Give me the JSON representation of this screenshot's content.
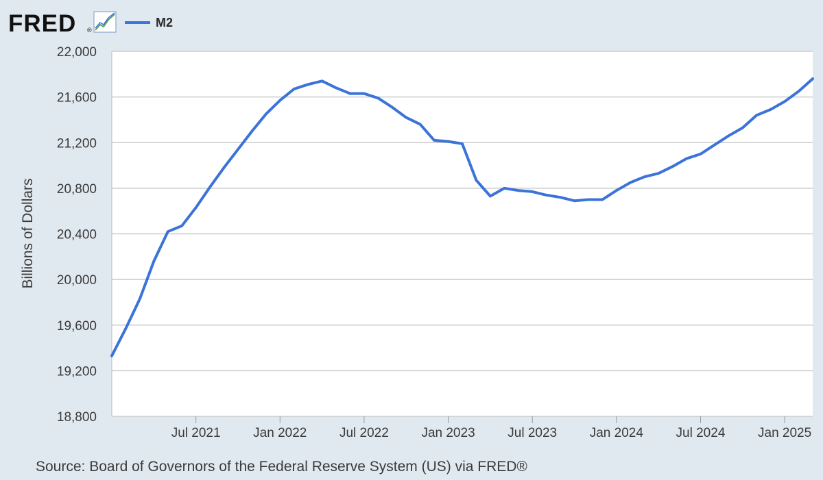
{
  "logo": {
    "text": "FRED",
    "registered": "®",
    "icon": "trend-chart-icon"
  },
  "legend": {
    "series_name": "M2",
    "color": "#3b73d9"
  },
  "source": "Source: Board of Governors of the Federal Reserve System (US) via FRED®",
  "colors": {
    "background": "#e1e9f0",
    "plot_background": "#ffffff",
    "line": "#3b73d9",
    "grid": "#cccccc"
  },
  "chart_data": {
    "type": "line",
    "title": "",
    "xlabel": "",
    "ylabel": "Billions of Dollars",
    "ylim": [
      18800,
      22000
    ],
    "yticks": [
      18800,
      19200,
      19600,
      20000,
      20400,
      20800,
      21200,
      21600,
      22000
    ],
    "ytick_labels": [
      "18,800",
      "19,200",
      "19,600",
      "20,000",
      "20,400",
      "20,800",
      "21,200",
      "21,600",
      "22,000"
    ],
    "xlim": [
      "2021-01",
      "2025-03"
    ],
    "xticks": [
      "2021-07",
      "2022-01",
      "2022-07",
      "2023-01",
      "2023-07",
      "2024-01",
      "2024-07",
      "2025-01"
    ],
    "xtick_labels": [
      "Jul 2021",
      "Jan 2022",
      "Jul 2022",
      "Jan 2023",
      "Jul 2023",
      "Jan 2024",
      "Jul 2024",
      "Jan 2025"
    ],
    "grid": true,
    "legend_position": "top-left",
    "series": [
      {
        "name": "M2",
        "x": [
          "2021-01",
          "2021-02",
          "2021-03",
          "2021-04",
          "2021-05",
          "2021-06",
          "2021-07",
          "2021-08",
          "2021-09",
          "2021-10",
          "2021-11",
          "2021-12",
          "2022-01",
          "2022-02",
          "2022-03",
          "2022-04",
          "2022-05",
          "2022-06",
          "2022-07",
          "2022-08",
          "2022-09",
          "2022-10",
          "2022-11",
          "2022-12",
          "2023-01",
          "2023-02",
          "2023-03",
          "2023-04",
          "2023-05",
          "2023-06",
          "2023-07",
          "2023-08",
          "2023-09",
          "2023-10",
          "2023-11",
          "2023-12",
          "2024-01",
          "2024-02",
          "2024-03",
          "2024-04",
          "2024-05",
          "2024-06",
          "2024-07",
          "2024-08",
          "2024-09",
          "2024-10",
          "2024-11",
          "2024-12",
          "2025-01",
          "2025-02",
          "2025-03"
        ],
        "values": [
          19330,
          19570,
          19830,
          20160,
          20420,
          20470,
          20630,
          20810,
          20980,
          21140,
          21300,
          21450,
          21570,
          21670,
          21710,
          21740,
          21680,
          21630,
          21630,
          21590,
          21510,
          21420,
          21360,
          21220,
          21210,
          21190,
          20870,
          20730,
          20800,
          20780,
          20770,
          20740,
          20720,
          20690,
          20700,
          20700,
          20780,
          20850,
          20900,
          20930,
          20990,
          21060,
          21100,
          21180,
          21260,
          21330,
          21440,
          21490,
          21560,
          21650,
          21760
        ]
      }
    ]
  }
}
